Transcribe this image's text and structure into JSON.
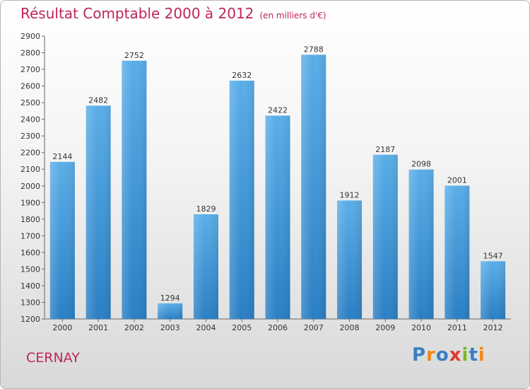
{
  "title": "Résultat Comptable 2000 à 2012",
  "subtitle": "(en milliers d'€)",
  "city": "CERNAY",
  "logo": {
    "text": "Proxiti",
    "letters": [
      {
        "ch": "P",
        "color": "#3a7fc4"
      },
      {
        "ch": "r",
        "color": "#f08a1c"
      },
      {
        "ch": "o",
        "color": "#3a7fc4"
      },
      {
        "ch": "x",
        "color": "#e03a2f"
      },
      {
        "ch": "i",
        "color": "#7ab929"
      },
      {
        "ch": "t",
        "color": "#3a7fc4"
      },
      {
        "ch": "i",
        "color": "#f08a1c"
      }
    ]
  },
  "colors": {
    "bar_light": "#5aaee8",
    "bar_dark": "#2a7fc4",
    "accent": "#c0245c"
  },
  "chart_data": {
    "type": "bar",
    "title": "Résultat Comptable 2000 à 2012",
    "xlabel": "",
    "ylabel": "en milliers d'€",
    "categories": [
      "2000",
      "2001",
      "2002",
      "2003",
      "2004",
      "2005",
      "2006",
      "2007",
      "2008",
      "2009",
      "2010",
      "2011",
      "2012"
    ],
    "values": [
      2144,
      2482,
      2752,
      1294,
      1829,
      2632,
      2422,
      2788,
      1912,
      2187,
      2098,
      2001,
      1547
    ],
    "ylim": [
      1200,
      2900
    ],
    "yticks": [
      1200,
      1300,
      1400,
      1500,
      1600,
      1700,
      1800,
      1900,
      2000,
      2100,
      2200,
      2300,
      2400,
      2500,
      2600,
      2700,
      2800,
      2900
    ],
    "grid": false,
    "legend": "none"
  }
}
